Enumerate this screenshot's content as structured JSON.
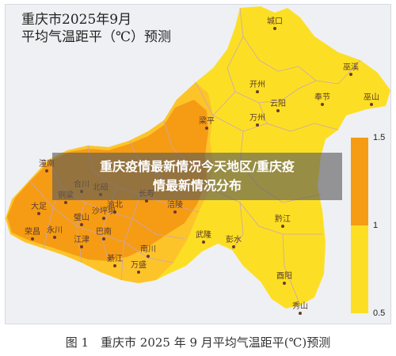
{
  "map": {
    "title_line1": "重庆市2025年9月",
    "title_line2": "平均气温距平（℃）预测",
    "colors": {
      "high": "#f59c14",
      "mid": "#fdc42a",
      "low": "#fcdf24",
      "border": "#c9a4ba",
      "background": "#eef0f3"
    },
    "cities": [
      {
        "name": "城口"
      },
      {
        "name": "巫溪"
      },
      {
        "name": "开州"
      },
      {
        "name": "云阳"
      },
      {
        "name": "奉节"
      },
      {
        "name": "巫山"
      },
      {
        "name": "万州"
      },
      {
        "name": "梁平"
      },
      {
        "name": "潼南"
      },
      {
        "name": "合川"
      },
      {
        "name": "铜梁"
      },
      {
        "name": "北碚"
      },
      {
        "name": "渝北"
      },
      {
        "name": "长寿"
      },
      {
        "name": "涪陵"
      },
      {
        "name": "大足"
      },
      {
        "name": "璧山"
      },
      {
        "name": "沙坪坝"
      },
      {
        "name": "永川"
      },
      {
        "name": "巴南"
      },
      {
        "name": "荣昌"
      },
      {
        "name": "江津"
      },
      {
        "name": "南川"
      },
      {
        "name": "綦江"
      },
      {
        "name": "万盛"
      },
      {
        "name": "武隆"
      },
      {
        "name": "彭水"
      },
      {
        "name": "黔江"
      },
      {
        "name": "酉阳"
      },
      {
        "name": "秀山"
      }
    ],
    "legend": {
      "ticks": [
        "1.5",
        "1",
        "0.5"
      ]
    }
  },
  "overlay": {
    "line1": "重庆疫情最新情况今天地区/重庆疫",
    "line2": "情最新情况分布"
  },
  "caption": "图 1　重庆市 2025 年 9 月平均气温距平(℃)预测"
}
